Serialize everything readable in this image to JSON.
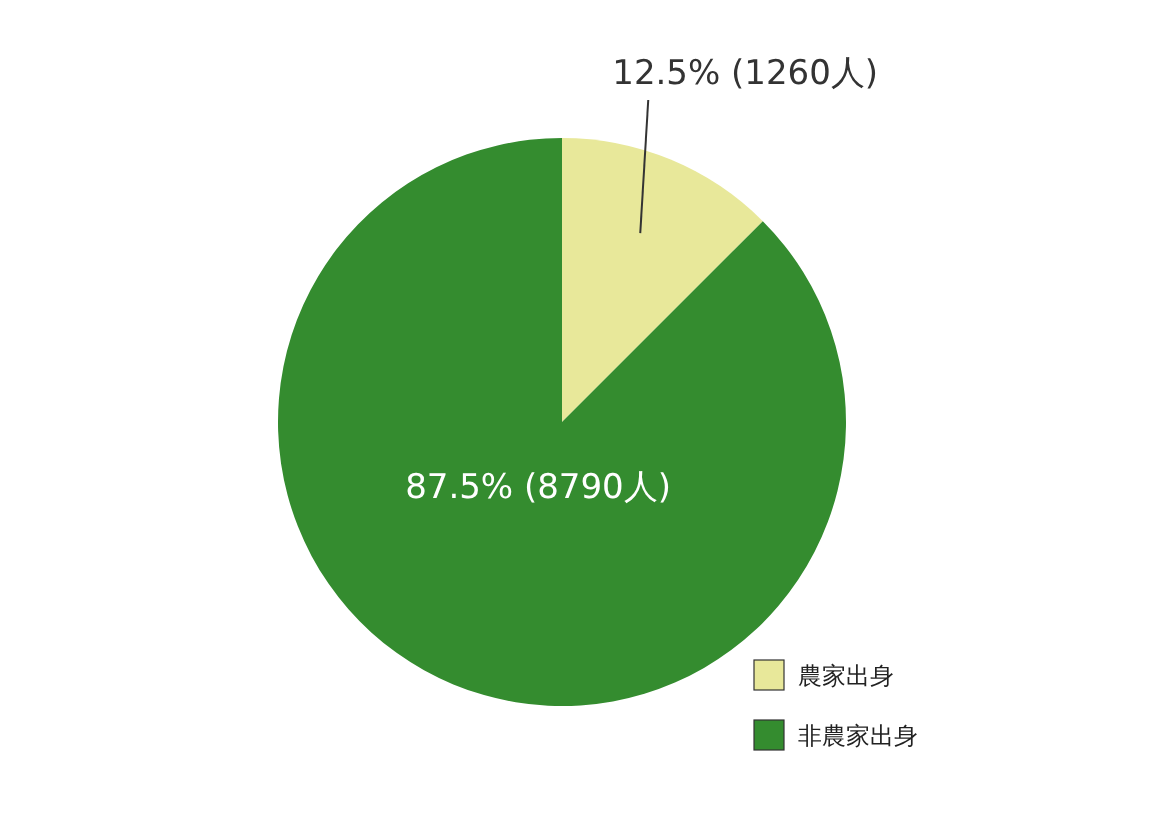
{
  "chart_data": {
    "type": "pie",
    "categories": [
      "農家出身",
      "非農家出身"
    ],
    "values": [
      12.5,
      87.5
    ],
    "value_labels": [
      "12.5% (1260人)",
      "87.5% (8790人)"
    ],
    "colors": [
      "#e8e89a",
      "#348c2f"
    ],
    "legend": "bottom right"
  }
}
